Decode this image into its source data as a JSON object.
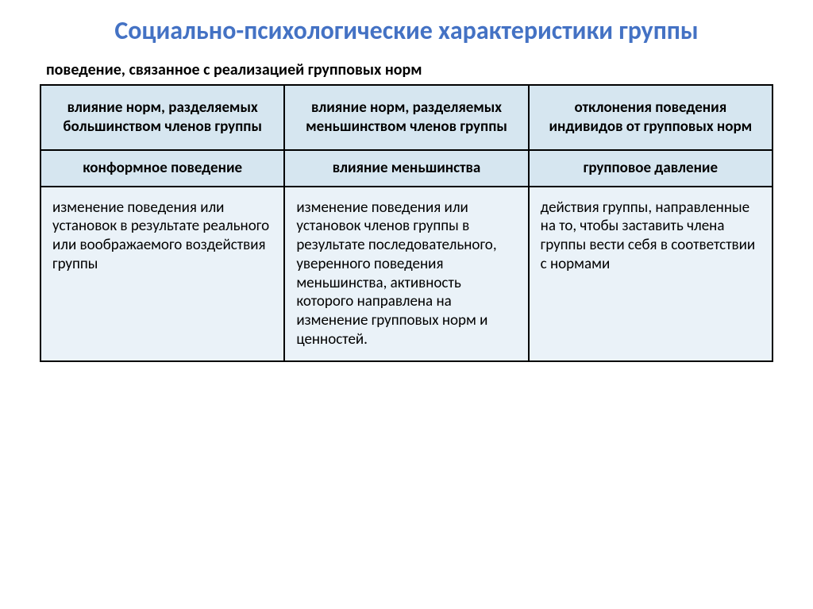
{
  "title": "Социально-психологические характеристики группы",
  "subtitle": "поведение, связанное с реализацией групповых норм",
  "table": {
    "columns": 3,
    "header_bg": "#d6e6f0",
    "body_bg": "#eaf2f8",
    "border_color": "#000000",
    "title_color": "#4472c4",
    "text_color": "#000000",
    "title_fontsize": 32,
    "subtitle_fontsize": 20,
    "cell_fontsize": 19,
    "row1": {
      "col1": "влияние норм, разделяемых большинством членов группы",
      "col2": "влияние норм, разделяемых меньшинством членов группы",
      "col3": "отклонения поведения индивидов от групповых норм"
    },
    "row2": {
      "col1": "конформное поведение",
      "col2": "влияние меньшинства",
      "col3": "групповое давление"
    },
    "row3": {
      "col1": "изменение поведения или установок в результате реального или воображаемого воздействия группы",
      "col2": "изменение поведения или установок членов группы в результате последовательного, уверенного поведения меньшинства, активность которого направлена на изменение групповых норм и ценностей.",
      "col3": "действия группы, направленные на то, чтобы заставить члена группы вести себя в соответствии с нормами"
    }
  }
}
